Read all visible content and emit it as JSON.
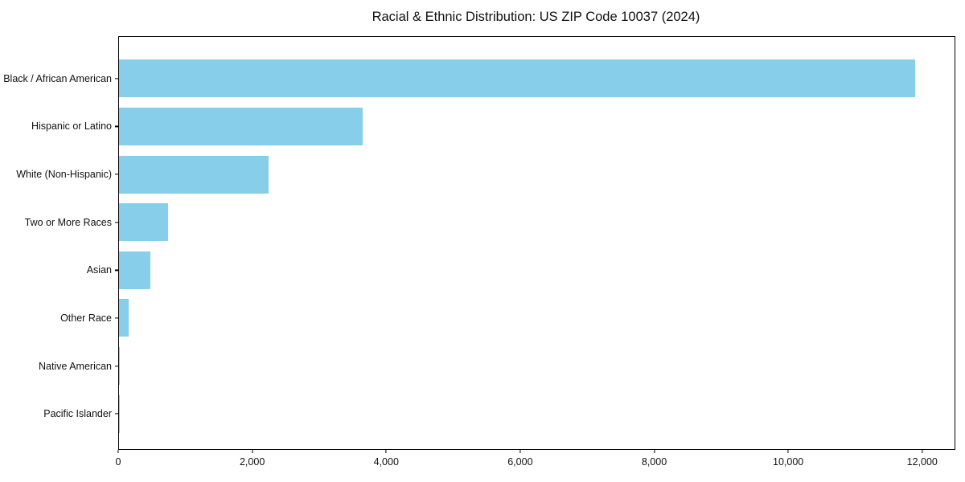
{
  "title": "Racial & Ethnic Distribution: US ZIP Code 10037 (2024)",
  "chart_data": {
    "type": "bar",
    "orientation": "horizontal",
    "title": "Racial & Ethnic Distribution: US ZIP Code 10037 (2024)",
    "xlabel": "",
    "ylabel": "",
    "categories": [
      "Black / African American",
      "Hispanic or Latino",
      "White (Non-Hispanic)",
      "Two or More Races",
      "Asian",
      "Other Race",
      "Native American",
      "Pacific Islander"
    ],
    "values": [
      11900,
      3640,
      2240,
      730,
      470,
      150,
      15,
      5
    ],
    "xticks": [
      0,
      2000,
      4000,
      6000,
      8000,
      10000,
      12000
    ],
    "xlim": [
      0,
      12495
    ],
    "grid": false,
    "legend": null,
    "bar_color": "#87CEEB",
    "axis_color": "#000000"
  }
}
